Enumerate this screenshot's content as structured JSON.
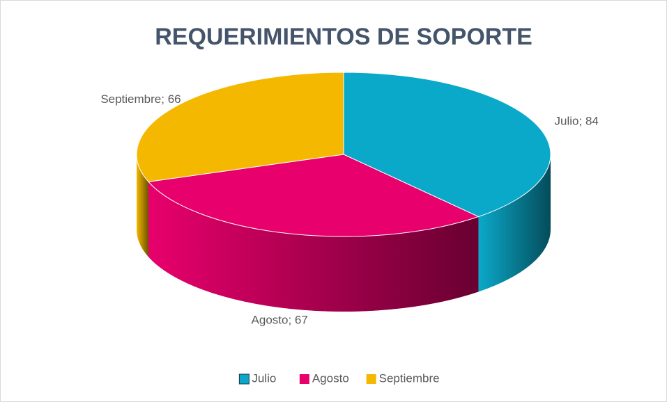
{
  "chart_data": {
    "type": "pie3d",
    "title": "REQUERIMIENTOS DE SOPORTE",
    "categories": [
      "Julio",
      "Agosto",
      "Septiembre"
    ],
    "values": [
      84,
      67,
      66
    ],
    "value_labels": [
      "Julio; 84",
      "Agosto; 67",
      "Septiembre; 66"
    ],
    "colors": [
      "#0aa9c9",
      "#e8006c",
      "#f5b800"
    ],
    "legend": "bottom"
  }
}
